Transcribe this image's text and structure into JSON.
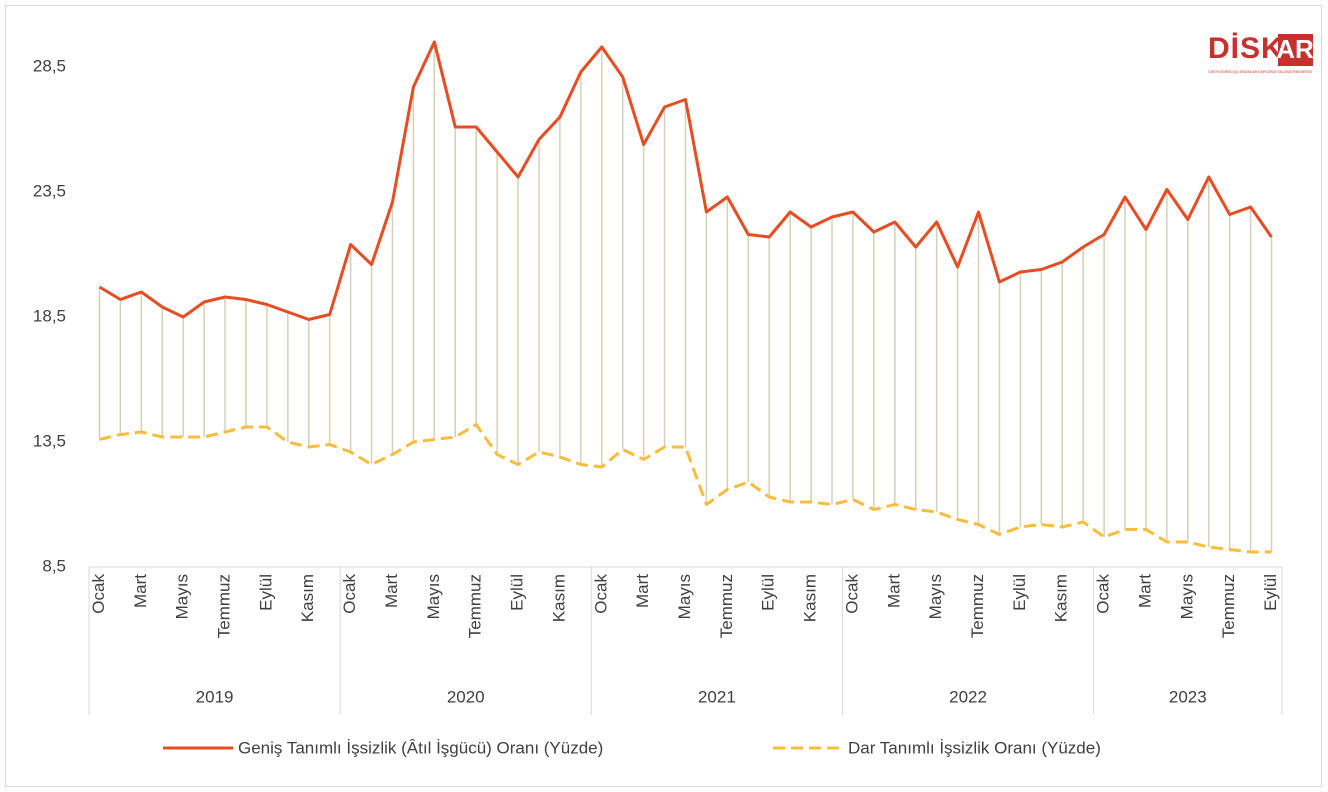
{
  "chart_data": {
    "type": "line",
    "logo": {
      "text": "DİSK",
      "accent": "AR",
      "tagline": "TÜRKİYE DEVRİMCİ İŞÇİ SENDİKALARI KONFEDERASYONU ARAŞTIRMA MERKEZİ"
    },
    "categories": [
      "Ocak",
      null,
      "Mart",
      null,
      "Mayıs",
      null,
      "Temmuz",
      null,
      "Eylül",
      null,
      "Kasım",
      null,
      "Ocak",
      null,
      "Mart",
      null,
      "Mayıs",
      null,
      "Temmuz",
      null,
      "Eylül",
      null,
      "Kasım",
      null,
      "Ocak",
      null,
      "Mart",
      null,
      "Mayıs",
      null,
      "Temmuz",
      null,
      "Eylül",
      null,
      "Kasım",
      null,
      "Ocak",
      null,
      "Mart",
      null,
      "Mayıs",
      null,
      "Temmuz",
      null,
      "Eylül",
      null,
      "Kasım",
      null,
      "Ocak",
      null,
      "Mart",
      null,
      "Mayıs",
      null,
      "Temmuz",
      null,
      "Eylül"
    ],
    "groups": [
      "2019",
      "2020",
      "2021",
      "2022",
      "2023"
    ],
    "series": [
      {
        "name": "Geniş Tanımlı İşsizlik (Âtıl İşgücü) Oranı (Yüzde)",
        "color": "#e84c22",
        "dash": false,
        "values": [
          19.7,
          19.2,
          19.5,
          18.9,
          18.5,
          19.1,
          19.3,
          19.2,
          19.0,
          18.7,
          18.4,
          18.6,
          21.4,
          20.6,
          23.1,
          27.7,
          29.5,
          26.1,
          26.1,
          25.1,
          24.1,
          25.6,
          26.5,
          28.3,
          29.3,
          28.1,
          25.4,
          26.9,
          27.2,
          22.7,
          23.3,
          21.8,
          21.7,
          22.7,
          22.1,
          22.5,
          22.7,
          21.9,
          22.3,
          21.3,
          22.3,
          20.5,
          22.7,
          19.9,
          20.3,
          20.4,
          20.7,
          21.3,
          21.8,
          23.3,
          22.0,
          23.6,
          22.4,
          24.1,
          22.6,
          22.9,
          21.7
        ]
      },
      {
        "name": "Dar Tanımlı İşsizlik Oranı (Yüzde)",
        "color": "#fbbc3c",
        "dash": true,
        "values": [
          13.6,
          13.8,
          13.9,
          13.7,
          13.7,
          13.7,
          13.9,
          14.1,
          14.1,
          13.5,
          13.3,
          13.4,
          13.1,
          12.6,
          13.0,
          13.5,
          13.6,
          13.7,
          14.2,
          13.0,
          12.6,
          13.1,
          12.9,
          12.6,
          12.5,
          13.2,
          12.8,
          13.3,
          13.3,
          11.0,
          11.6,
          11.9,
          11.3,
          11.1,
          11.1,
          11.0,
          11.2,
          10.8,
          11.0,
          10.8,
          10.7,
          10.4,
          10.2,
          9.8,
          10.1,
          10.2,
          10.1,
          10.3,
          9.7,
          10.0,
          10.0,
          9.5,
          9.5,
          9.3,
          9.2,
          9.1,
          9.1
        ]
      }
    ],
    "drop_lines": true,
    "ylim": [
      8.5,
      30.5
    ],
    "yticks": [
      {
        "value": 8.5,
        "label": "8,5"
      },
      {
        "value": 13.5,
        "label": "13,5"
      },
      {
        "value": 18.5,
        "label": "18,5"
      },
      {
        "value": 23.5,
        "label": "23,5"
      },
      {
        "value": 28.5,
        "label": "28,5"
      }
    ]
  }
}
